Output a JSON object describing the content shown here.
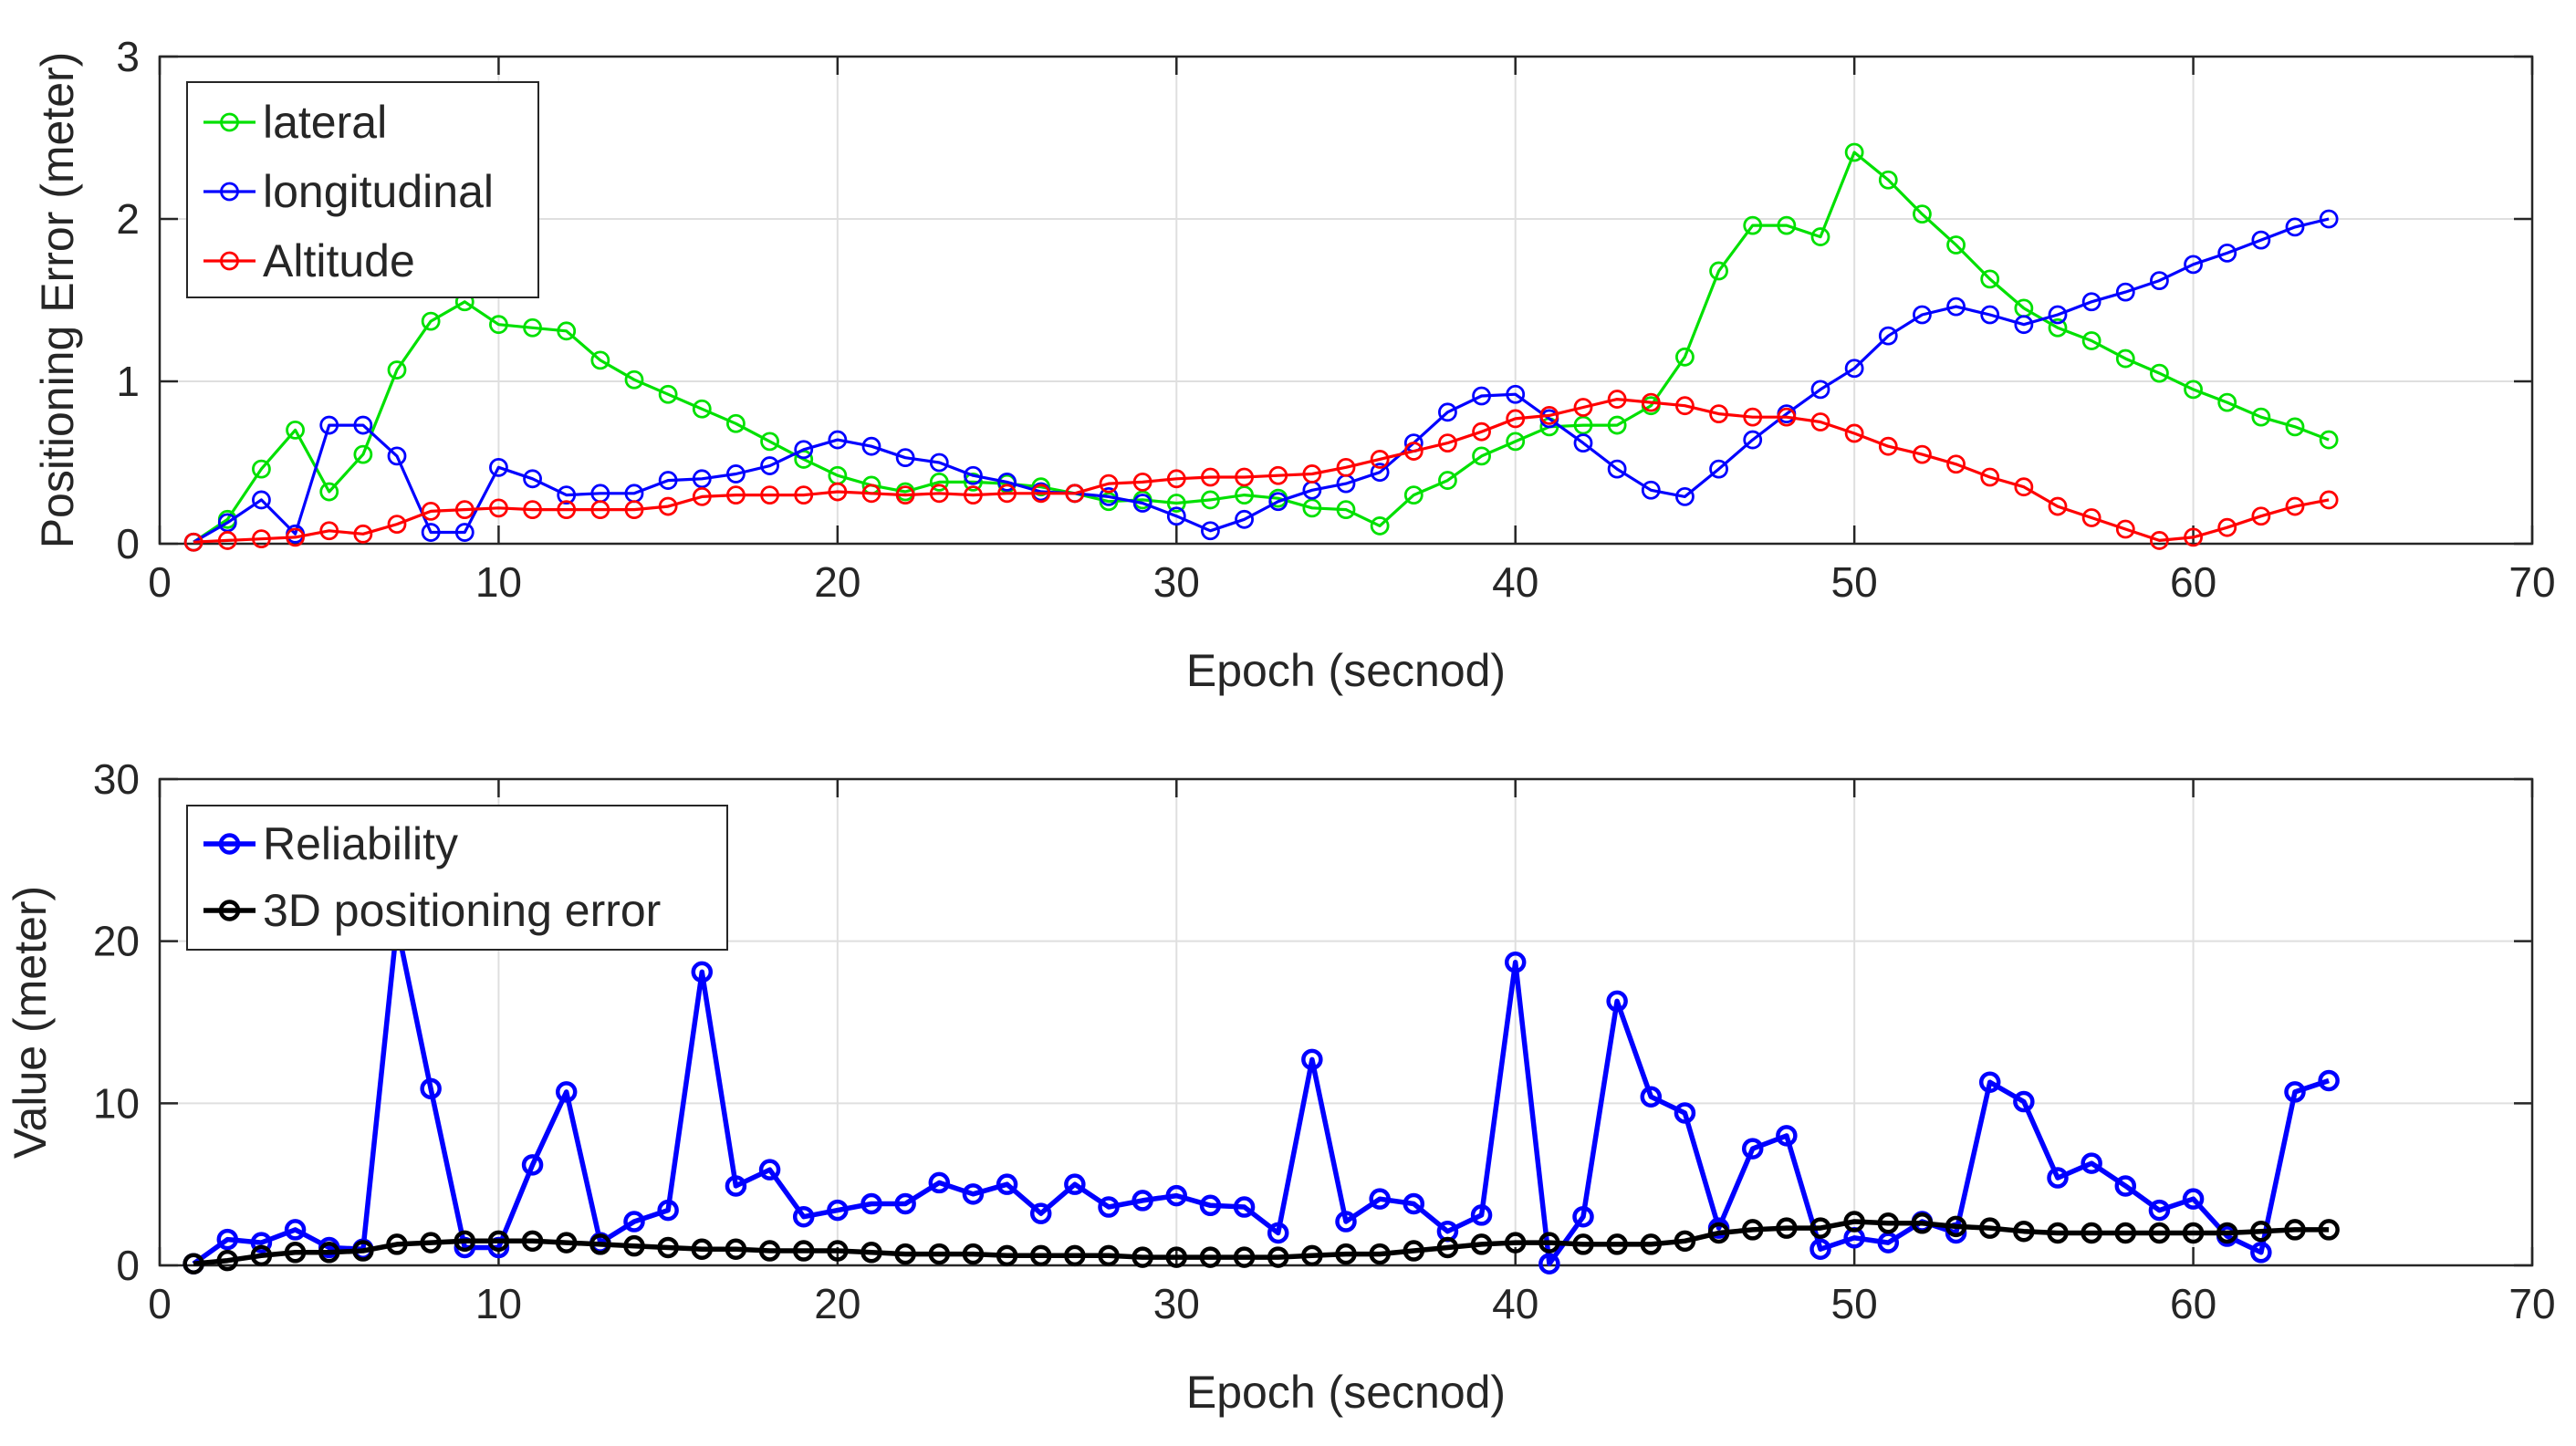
{
  "chart_data": [
    {
      "type": "line",
      "xlabel": "Epoch (secnod)",
      "ylabel": "Positioning Error (meter)",
      "xlim": [
        0,
        70
      ],
      "ylim": [
        0,
        3
      ],
      "xticks": [
        0,
        10,
        20,
        30,
        40,
        50,
        60,
        70
      ],
      "yticks": [
        0,
        1,
        2,
        3
      ],
      "grid": true,
      "legend_position": "top-left",
      "x": [
        1,
        2,
        3,
        4,
        5,
        6,
        7,
        8,
        9,
        10,
        11,
        12,
        13,
        14,
        15,
        16,
        17,
        18,
        19,
        20,
        21,
        22,
        23,
        24,
        25,
        26,
        27,
        28,
        29,
        30,
        31,
        32,
        33,
        34,
        35,
        36,
        37,
        38,
        39,
        40,
        41,
        42,
        43,
        44,
        45,
        46,
        47,
        48,
        49,
        50,
        51,
        52,
        53,
        54,
        55,
        56,
        57,
        58,
        59,
        60,
        61,
        62,
        63,
        64
      ],
      "series": [
        {
          "name": "lateral",
          "color": "#00e000",
          "marker": "circle",
          "values": [
            0.01,
            0.15,
            0.46,
            0.7,
            0.32,
            0.55,
            1.07,
            1.37,
            1.49,
            1.35,
            1.33,
            1.31,
            1.13,
            1.01,
            0.92,
            0.83,
            0.74,
            0.63,
            0.52,
            0.42,
            0.36,
            0.32,
            0.38,
            0.38,
            0.37,
            0.35,
            0.31,
            0.26,
            0.27,
            0.25,
            0.27,
            0.3,
            0.28,
            0.22,
            0.21,
            0.11,
            0.3,
            0.39,
            0.54,
            0.63,
            0.72,
            0.73,
            0.73,
            0.85,
            1.15,
            1.68,
            1.96,
            1.96,
            1.89,
            2.41,
            2.24,
            2.03,
            1.84,
            1.63,
            1.45,
            1.33,
            1.25,
            1.14,
            1.05,
            0.95,
            0.87,
            0.78,
            0.72,
            0.64
          ]
        },
        {
          "name": "longitudinal",
          "color": "#0000ff",
          "marker": "circle",
          "values": [
            0.01,
            0.13,
            0.27,
            0.06,
            0.73,
            0.73,
            0.54,
            0.07,
            0.07,
            0.47,
            0.4,
            0.3,
            0.31,
            0.31,
            0.39,
            0.4,
            0.43,
            0.48,
            0.58,
            0.64,
            0.6,
            0.53,
            0.5,
            0.42,
            0.38,
            0.32,
            0.31,
            0.29,
            0.25,
            0.17,
            0.08,
            0.15,
            0.26,
            0.33,
            0.37,
            0.44,
            0.62,
            0.81,
            0.91,
            0.92,
            0.77,
            0.62,
            0.46,
            0.33,
            0.29,
            0.46,
            0.64,
            0.8,
            0.95,
            1.08,
            1.28,
            1.41,
            1.46,
            1.41,
            1.35,
            1.41,
            1.49,
            1.55,
            1.62,
            1.72,
            1.79,
            1.87,
            1.95,
            2.0
          ]
        },
        {
          "name": "Altitude",
          "color": "#ff0000",
          "marker": "circle",
          "values": [
            0.01,
            0.02,
            0.03,
            0.04,
            0.08,
            0.06,
            0.12,
            0.2,
            0.21,
            0.22,
            0.21,
            0.21,
            0.21,
            0.21,
            0.23,
            0.29,
            0.3,
            0.3,
            0.3,
            0.32,
            0.31,
            0.3,
            0.31,
            0.3,
            0.31,
            0.31,
            0.31,
            0.37,
            0.38,
            0.4,
            0.41,
            0.41,
            0.42,
            0.43,
            0.47,
            0.52,
            0.57,
            0.62,
            0.69,
            0.77,
            0.79,
            0.84,
            0.89,
            0.87,
            0.85,
            0.8,
            0.78,
            0.78,
            0.75,
            0.68,
            0.6,
            0.55,
            0.49,
            0.41,
            0.35,
            0.23,
            0.16,
            0.09,
            0.02,
            0.04,
            0.1,
            0.17,
            0.23,
            0.27
          ]
        }
      ]
    },
    {
      "type": "line",
      "xlabel": "Epoch (secnod)",
      "ylabel": "Value (meter)",
      "xlim": [
        0,
        70
      ],
      "ylim": [
        0,
        30
      ],
      "xticks": [
        0,
        10,
        20,
        30,
        40,
        50,
        60,
        70
      ],
      "yticks": [
        0,
        10,
        20,
        30
      ],
      "grid": true,
      "legend_position": "top-left",
      "x": [
        1,
        2,
        3,
        4,
        5,
        6,
        7,
        8,
        9,
        10,
        11,
        12,
        13,
        14,
        15,
        16,
        17,
        18,
        19,
        20,
        21,
        22,
        23,
        24,
        25,
        26,
        27,
        28,
        29,
        30,
        31,
        32,
        33,
        34,
        35,
        36,
        37,
        38,
        39,
        40,
        41,
        42,
        43,
        44,
        45,
        46,
        47,
        48,
        49,
        50,
        51,
        52,
        53,
        54,
        55,
        56,
        57,
        58,
        59,
        60,
        61,
        62,
        63,
        64
      ],
      "series": [
        {
          "name": "Reliability",
          "color": "#0000ff",
          "marker": "circle",
          "values": [
            0.1,
            1.6,
            1.4,
            2.2,
            1.1,
            1.0,
            21.0,
            10.9,
            1.1,
            1.1,
            6.2,
            10.7,
            1.4,
            2.7,
            3.4,
            18.1,
            4.9,
            5.9,
            3.0,
            3.4,
            3.8,
            3.8,
            5.1,
            4.4,
            5.0,
            3.2,
            5.0,
            3.6,
            4.0,
            4.3,
            3.7,
            3.6,
            2.0,
            12.7,
            2.7,
            4.1,
            3.8,
            2.1,
            3.1,
            18.7,
            0.1,
            3.0,
            16.3,
            10.4,
            9.4,
            2.3,
            7.2,
            8.0,
            1.0,
            1.7,
            1.4,
            2.7,
            2.0,
            11.3,
            10.1,
            5.4,
            6.3,
            4.9,
            3.4,
            4.1,
            1.8,
            0.8,
            10.7,
            11.4
          ]
        },
        {
          "name": "3D positioning error",
          "color": "#000000",
          "marker": "circle",
          "values": [
            0.1,
            0.3,
            0.6,
            0.8,
            0.8,
            0.9,
            1.3,
            1.4,
            1.5,
            1.5,
            1.5,
            1.4,
            1.3,
            1.2,
            1.1,
            1.0,
            1.0,
            0.9,
            0.9,
            0.9,
            0.8,
            0.7,
            0.7,
            0.7,
            0.6,
            0.6,
            0.6,
            0.6,
            0.5,
            0.5,
            0.5,
            0.5,
            0.5,
            0.6,
            0.7,
            0.7,
            0.9,
            1.1,
            1.3,
            1.4,
            1.4,
            1.3,
            1.3,
            1.3,
            1.5,
            2.0,
            2.2,
            2.3,
            2.3,
            2.7,
            2.6,
            2.6,
            2.4,
            2.3,
            2.1,
            2.0,
            2.0,
            2.0,
            2.0,
            2.0,
            2.0,
            2.1,
            2.2,
            2.2
          ]
        }
      ]
    }
  ]
}
